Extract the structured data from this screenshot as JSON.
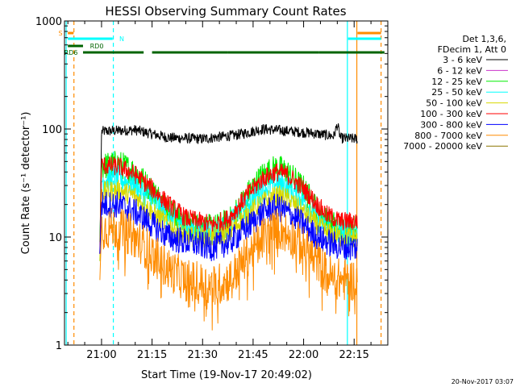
{
  "chart_data": {
    "type": "line",
    "title": "HESSI Observing Summary Count Rates",
    "xlabel": "Start Time (19-Nov-17 20:49:02)",
    "ylabel": "Count Rate (s⁻¹ detector⁻¹)",
    "yscale": "log",
    "ylim": [
      1,
      1000
    ],
    "xlim_minutes": [
      -11,
      85
    ],
    "x_ticks": [
      {
        "m": 0,
        "label": "21:00"
      },
      {
        "m": 15,
        "label": "21:15"
      },
      {
        "m": 30,
        "label": "21:30"
      },
      {
        "m": 45,
        "label": "21:45"
      },
      {
        "m": 60,
        "label": "22:00"
      },
      {
        "m": 75,
        "label": "22:15"
      }
    ],
    "y_ticks": [
      {
        "v": 1,
        "label": "1"
      },
      {
        "v": 10,
        "label": "10"
      },
      {
        "v": 100,
        "label": "100"
      },
      {
        "v": 1000,
        "label": "1000"
      }
    ],
    "legend": {
      "position": "right",
      "header": [
        "Det 1,3,6,",
        "FDecim 1, Att 0"
      ],
      "entries": [
        {
          "label": "3 - 6 keV",
          "color": "#000000"
        },
        {
          "label": "6 - 12 keV",
          "color": "#cc33cc"
        },
        {
          "label": "12 - 25 keV",
          "color": "#00ee00"
        },
        {
          "label": "25 - 50 keV",
          "color": "#00ffff"
        },
        {
          "label": "50 - 100 keV",
          "color": "#d8d800"
        },
        {
          "label": "100 - 300 keV",
          "color": "#ff0000"
        },
        {
          "label": "300 - 800 keV",
          "color": "#0000ff"
        },
        {
          "label": "800 - 7000 keV",
          "color": "#ff8c00"
        },
        {
          "label": "7000 - 20000 keV",
          "color": "#8b7500"
        }
      ]
    },
    "series": [
      {
        "key": "3-6",
        "color": "#000000",
        "noise": 0.05,
        "points": [
          [
            -0.5,
            7
          ],
          [
            0,
            95
          ],
          [
            10,
            98
          ],
          [
            15,
            90
          ],
          [
            20,
            83
          ],
          [
            30,
            81
          ],
          [
            40,
            88
          ],
          [
            48,
            100
          ],
          [
            55,
            96
          ],
          [
            62,
            92
          ],
          [
            69,
            86
          ],
          [
            70,
            110
          ],
          [
            71,
            82
          ],
          [
            76,
            81
          ]
        ]
      },
      {
        "key": "red",
        "color": "#ff0000",
        "noise": 0.09,
        "points": [
          [
            -0.5,
            7
          ],
          [
            0,
            46
          ],
          [
            5,
            45
          ],
          [
            10,
            38
          ],
          [
            15,
            28
          ],
          [
            20,
            20
          ],
          [
            25,
            15
          ],
          [
            33,
            13
          ],
          [
            38,
            15
          ],
          [
            43,
            24
          ],
          [
            48,
            35
          ],
          [
            52,
            40
          ],
          [
            55,
            38
          ],
          [
            60,
            28
          ],
          [
            64,
            20
          ],
          [
            67,
            16
          ],
          [
            71,
            14
          ],
          [
            76,
            14
          ]
        ]
      },
      {
        "key": "green",
        "color": "#00ee00",
        "noise": 0.13,
        "points": [
          [
            -0.5,
            9
          ],
          [
            0,
            45
          ],
          [
            5,
            48
          ],
          [
            10,
            40
          ],
          [
            15,
            27
          ],
          [
            20,
            18
          ],
          [
            25,
            13
          ],
          [
            33,
            12
          ],
          [
            38,
            14
          ],
          [
            43,
            24
          ],
          [
            48,
            38
          ],
          [
            52,
            44
          ],
          [
            55,
            40
          ],
          [
            60,
            28
          ],
          [
            64,
            18
          ],
          [
            67,
            14
          ],
          [
            71,
            12
          ],
          [
            76,
            12
          ]
        ]
      },
      {
        "key": "cyan",
        "color": "#00ffff",
        "noise": 0.12,
        "points": [
          [
            -0.5,
            6
          ],
          [
            0,
            34
          ],
          [
            5,
            35
          ],
          [
            10,
            30
          ],
          [
            15,
            22
          ],
          [
            20,
            16
          ],
          [
            25,
            12
          ],
          [
            33,
            11
          ],
          [
            38,
            13
          ],
          [
            43,
            20
          ],
          [
            48,
            28
          ],
          [
            52,
            32
          ],
          [
            55,
            29
          ],
          [
            60,
            22
          ],
          [
            64,
            15
          ],
          [
            67,
            12
          ],
          [
            71,
            11
          ],
          [
            76,
            11
          ]
        ]
      },
      {
        "key": "yellow",
        "color": "#d8d800",
        "noise": 0.1,
        "points": [
          [
            -0.5,
            6
          ],
          [
            0,
            26
          ],
          [
            5,
            27
          ],
          [
            10,
            24
          ],
          [
            15,
            17
          ],
          [
            20,
            13
          ],
          [
            25,
            10
          ],
          [
            33,
            10
          ],
          [
            38,
            11
          ],
          [
            43,
            16
          ],
          [
            48,
            21
          ],
          [
            52,
            24
          ],
          [
            55,
            23
          ],
          [
            60,
            17
          ],
          [
            64,
            13
          ],
          [
            67,
            11
          ],
          [
            71,
            10
          ],
          [
            76,
            10
          ]
        ]
      },
      {
        "key": "blue",
        "color": "#0000ff",
        "noise": 0.13,
        "points": [
          [
            -0.5,
            7
          ],
          [
            0,
            20
          ],
          [
            5,
            20
          ],
          [
            10,
            17
          ],
          [
            15,
            13
          ],
          [
            20,
            10
          ],
          [
            25,
            9
          ],
          [
            33,
            8
          ],
          [
            38,
            9
          ],
          [
            43,
            12
          ],
          [
            48,
            17
          ],
          [
            52,
            19
          ],
          [
            55,
            17
          ],
          [
            60,
            13
          ],
          [
            64,
            10
          ],
          [
            67,
            9
          ],
          [
            71,
            8
          ],
          [
            76,
            8
          ]
        ]
      },
      {
        "key": "orange",
        "color": "#ff8c00",
        "noise": 0.2,
        "points": [
          [
            -0.5,
            4
          ],
          [
            0,
            12
          ],
          [
            5,
            12
          ],
          [
            10,
            10
          ],
          [
            15,
            7
          ],
          [
            20,
            5
          ],
          [
            25,
            4
          ],
          [
            33,
            3.5
          ],
          [
            38,
            4
          ],
          [
            43,
            6.5
          ],
          [
            48,
            10
          ],
          [
            52,
            12
          ],
          [
            55,
            11
          ],
          [
            60,
            8
          ],
          [
            64,
            6
          ],
          [
            67,
            4.5
          ],
          [
            71,
            4
          ],
          [
            76,
            4
          ]
        ]
      }
    ],
    "gap_lines": [
      {
        "m": -10.5,
        "color": "#00ffff",
        "dashed": false
      },
      {
        "m": -8.2,
        "color": "#ff8c00",
        "dashed": true
      },
      {
        "m": 3.5,
        "color": "#00ffff",
        "dashed": true
      },
      {
        "m": 73.0,
        "color": "#00ffff",
        "dashed": false
      },
      {
        "m": 75.8,
        "color": "#ff8c00",
        "dashed": false
      },
      {
        "m": 83.0,
        "color": "#ff8c00",
        "dashed": true
      }
    ],
    "flag_bars": [
      {
        "label": "S",
        "color": "#ff8c00",
        "segments": [
          [
            -10,
            -8.3
          ],
          [
            76,
            83
          ]
        ]
      },
      {
        "label": "N",
        "color": "#00ffff",
        "segments": [
          [
            -10,
            3.3
          ],
          [
            73.2,
            83
          ]
        ]
      },
      {
        "label": "RD0",
        "color": "#006400",
        "segments": [
          [
            -10,
            -5.5
          ]
        ]
      },
      {
        "label": "RD6",
        "color": "#006400",
        "segments": [
          [
            -5.5,
            12.5
          ],
          [
            15,
            37.5
          ],
          [
            37.5,
            64.5
          ],
          [
            64.5,
            84
          ]
        ]
      }
    ]
  },
  "timestamp": "20-Nov-2017 03:07"
}
